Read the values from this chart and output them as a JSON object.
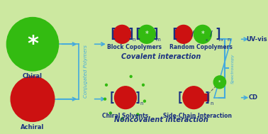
{
  "bg_color": "#cce8a0",
  "dark_navy": "#1a3080",
  "arrow_color": "#44aadd",
  "green_color": "#33bb11",
  "red_color": "#cc1111",
  "white": "#ffffff",
  "black": "#111111",
  "conj_poly_label": "Conjugated Polymers",
  "covalent_label": "Covalent interaction",
  "noncovalent_label": "Noncovalent interaction",
  "block_label": "Block Copolymers",
  "random_label": "Random Copolymers",
  "chiral_solvents_label": "Chiral Solvents",
  "side_chain_label": "Side-Chain Interaction",
  "spectroscopy_label": "Spectroscopy",
  "uvvis_label": "UV-vis",
  "cd_label": "CD",
  "chiral_label": "Chiral",
  "achiral_label": "Achiral"
}
